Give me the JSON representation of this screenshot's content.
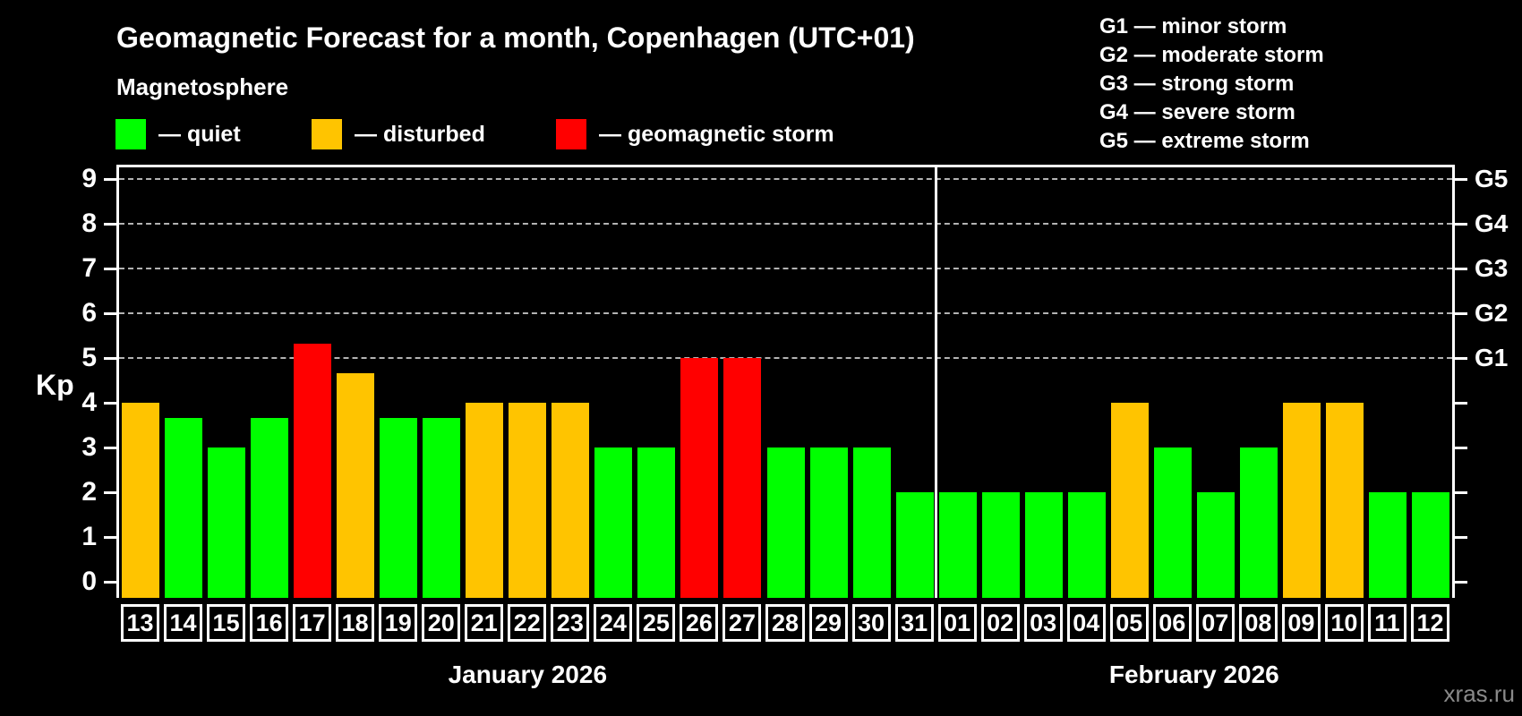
{
  "header": {
    "title": "Geomagnetic Forecast for a month, Copenhagen (UTC+01)",
    "subtitle": "Magnetosphere"
  },
  "legend": [
    {
      "name": "quiet",
      "label": "— quiet",
      "color": "#00ff00"
    },
    {
      "name": "disturbed",
      "label": "— disturbed",
      "color": "#ffc400"
    },
    {
      "name": "storm",
      "label": "— geomagnetic storm",
      "color": "#ff0000"
    }
  ],
  "storm_scale": [
    {
      "label": "G1 — minor storm"
    },
    {
      "label": "G2 — moderate storm"
    },
    {
      "label": "G3 — strong storm"
    },
    {
      "label": "G4 — severe storm"
    },
    {
      "label": "G5 — extreme storm"
    }
  ],
  "axis": {
    "kp_label": "Kp",
    "y_ticks": [
      0,
      1,
      2,
      3,
      4,
      5,
      6,
      7,
      8,
      9
    ],
    "g_ticks": [
      {
        "label": "G1",
        "kp": 5
      },
      {
        "label": "G2",
        "kp": 6
      },
      {
        "label": "G3",
        "kp": 7
      },
      {
        "label": "G4",
        "kp": 8
      },
      {
        "label": "G5",
        "kp": 9
      }
    ]
  },
  "watermark": "xras.ru",
  "chart_data": {
    "type": "bar",
    "title": "Geomagnetic Forecast for a month, Copenhagen (UTC+01)",
    "ylabel": "Kp",
    "ylim": [
      0,
      9.4
    ],
    "grid": "dashed horizontal at storm levels",
    "gridlines_at_kp": [
      5,
      6,
      7,
      8,
      9
    ],
    "legend_position": "top",
    "colors": {
      "quiet": "#00ff00",
      "disturbed": "#ffc400",
      "storm": "#ff0000",
      "axis": "#ffffff",
      "gridline": "#b3b3b3"
    },
    "months": [
      {
        "label": "January 2026",
        "days": [
          {
            "day": "13",
            "kp": 4.0,
            "status": "disturbed"
          },
          {
            "day": "14",
            "kp": 3.67,
            "status": "quiet"
          },
          {
            "day": "15",
            "kp": 3.0,
            "status": "quiet"
          },
          {
            "day": "16",
            "kp": 3.67,
            "status": "quiet"
          },
          {
            "day": "17",
            "kp": 5.33,
            "status": "storm"
          },
          {
            "day": "18",
            "kp": 4.67,
            "status": "disturbed"
          },
          {
            "day": "19",
            "kp": 3.67,
            "status": "quiet"
          },
          {
            "day": "20",
            "kp": 3.67,
            "status": "quiet"
          },
          {
            "day": "21",
            "kp": 4.0,
            "status": "disturbed"
          },
          {
            "day": "22",
            "kp": 4.0,
            "status": "disturbed"
          },
          {
            "day": "23",
            "kp": 4.0,
            "status": "disturbed"
          },
          {
            "day": "24",
            "kp": 3.0,
            "status": "quiet"
          },
          {
            "day": "25",
            "kp": 3.0,
            "status": "quiet"
          },
          {
            "day": "26",
            "kp": 5.0,
            "status": "storm"
          },
          {
            "day": "27",
            "kp": 5.0,
            "status": "storm"
          },
          {
            "day": "28",
            "kp": 3.0,
            "status": "quiet"
          },
          {
            "day": "29",
            "kp": 3.0,
            "status": "quiet"
          },
          {
            "day": "30",
            "kp": 3.0,
            "status": "quiet"
          },
          {
            "day": "31",
            "kp": 2.0,
            "status": "quiet"
          }
        ]
      },
      {
        "label": "February 2026",
        "days": [
          {
            "day": "01",
            "kp": 2.0,
            "status": "quiet"
          },
          {
            "day": "02",
            "kp": 2.0,
            "status": "quiet"
          },
          {
            "day": "03",
            "kp": 2.0,
            "status": "quiet"
          },
          {
            "day": "04",
            "kp": 2.0,
            "status": "quiet"
          },
          {
            "day": "05",
            "kp": 4.0,
            "status": "disturbed"
          },
          {
            "day": "06",
            "kp": 3.0,
            "status": "quiet"
          },
          {
            "day": "07",
            "kp": 2.0,
            "status": "quiet"
          },
          {
            "day": "08",
            "kp": 3.0,
            "status": "quiet"
          },
          {
            "day": "09",
            "kp": 4.0,
            "status": "disturbed"
          },
          {
            "day": "10",
            "kp": 4.0,
            "status": "disturbed"
          },
          {
            "day": "11",
            "kp": 2.0,
            "status": "quiet"
          },
          {
            "day": "12",
            "kp": 2.0,
            "status": "quiet"
          }
        ]
      }
    ]
  }
}
